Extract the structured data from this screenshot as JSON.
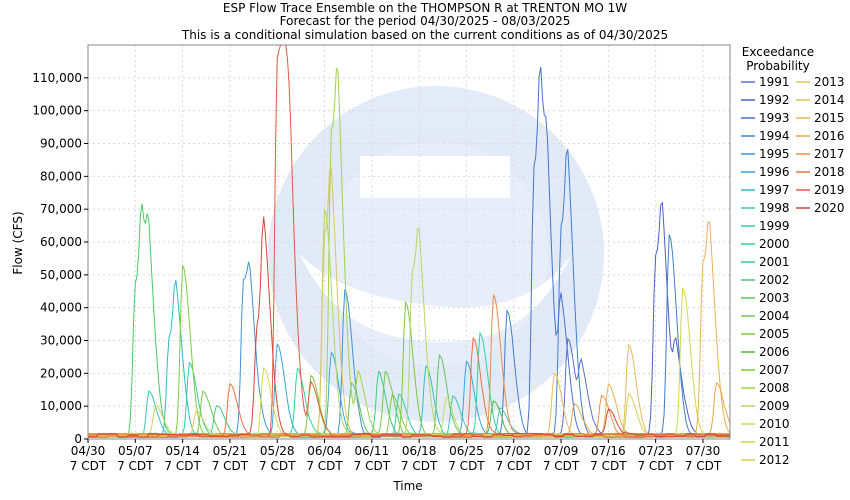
{
  "chart_data": {
    "type": "line",
    "title_lines": [
      "ESP Flow Trace Ensemble on the THOMPSON R at TRENTON MO 1W",
      "Forecast for the period 04/30/2025 - 08/03/2025",
      "This is a conditional simulation based on the current conditions as of 04/30/2025"
    ],
    "xlabel": "Time",
    "ylabel": "Flow (CFS)",
    "ylim": [
      0,
      120000
    ],
    "yticks": [
      0,
      10000,
      20000,
      30000,
      40000,
      50000,
      60000,
      70000,
      80000,
      90000,
      100000,
      110000
    ],
    "ytick_labels": [
      "0",
      "10,000",
      "20,000",
      "30,000",
      "40,000",
      "50,000",
      "60,000",
      "70,000",
      "80,000",
      "90,000",
      "100,000",
      "110,000"
    ],
    "xlim_days": [
      0,
      95
    ],
    "xticks": [
      {
        "day": 0,
        "date": "04/30",
        "tz": "7 CDT"
      },
      {
        "day": 7,
        "date": "05/07",
        "tz": "7 CDT"
      },
      {
        "day": 14,
        "date": "05/14",
        "tz": "7 CDT"
      },
      {
        "day": 21,
        "date": "05/21",
        "tz": "7 CDT"
      },
      {
        "day": 28,
        "date": "05/28",
        "tz": "7 CDT"
      },
      {
        "day": 35,
        "date": "06/04",
        "tz": "7 CDT"
      },
      {
        "day": 42,
        "date": "06/11",
        "tz": "7 CDT"
      },
      {
        "day": 49,
        "date": "06/18",
        "tz": "7 CDT"
      },
      {
        "day": 56,
        "date": "06/25",
        "tz": "7 CDT"
      },
      {
        "day": 63,
        "date": "07/02",
        "tz": "7 CDT"
      },
      {
        "day": 70,
        "date": "07/09",
        "tz": "7 CDT"
      },
      {
        "day": 77,
        "date": "07/16",
        "tz": "7 CDT"
      },
      {
        "day": 84,
        "date": "07/23",
        "tz": "7 CDT"
      },
      {
        "day": 91,
        "date": "07/30",
        "tz": "7 CDT"
      }
    ],
    "grid": true,
    "legend_title_lines": [
      "Exceedance",
      "Probability"
    ],
    "legend_position": "right",
    "series": [
      {
        "name": "1991",
        "color": "#5a6fd0",
        "peaks": [
          [
            71,
            30000
          ],
          [
            73,
            18000
          ]
        ]
      },
      {
        "name": "1992",
        "color": "#4a60c8",
        "peaks": [
          [
            84,
            55000
          ],
          [
            85,
            35000
          ],
          [
            87,
            22000
          ]
        ]
      },
      {
        "name": "1993",
        "color": "#4670d2",
        "peaks": [
          [
            66,
            81000
          ],
          [
            67,
            58000
          ],
          [
            68,
            36000
          ],
          [
            70,
            35000
          ]
        ]
      },
      {
        "name": "1994",
        "color": "#3f7fcf",
        "peaks": [
          [
            62,
            38000
          ],
          [
            70,
            63000
          ],
          [
            71,
            45000
          ],
          [
            86,
            61000
          ]
        ]
      },
      {
        "name": "1995",
        "color": "#3a95d8",
        "peaks": [
          [
            23,
            47000
          ],
          [
            24,
            20000
          ],
          [
            38,
            44000
          ]
        ]
      },
      {
        "name": "1996",
        "color": "#34a8d6",
        "peaks": [
          [
            28,
            28000
          ],
          [
            36,
            25000
          ],
          [
            56,
            22000
          ]
        ]
      },
      {
        "name": "1997",
        "color": "#2fbcc4",
        "peaks": [
          [
            12,
            30000
          ],
          [
            13,
            28000
          ],
          [
            50,
            21000
          ]
        ]
      },
      {
        "name": "1998",
        "color": "#3cc6b6",
        "peaks": [
          [
            9,
            14000
          ],
          [
            54,
            12000
          ],
          [
            61,
            8000
          ]
        ]
      },
      {
        "name": "1999",
        "color": "#2fcfb0",
        "peaks": [
          [
            15,
            22000
          ],
          [
            46,
            13000
          ]
        ]
      },
      {
        "name": "2000",
        "color": "#2dd39a",
        "peaks": [
          [
            31,
            20000
          ],
          [
            58,
            31000
          ]
        ]
      },
      {
        "name": "2001",
        "color": "#36cf80",
        "peaks": [
          [
            19,
            9000
          ],
          [
            43,
            19000
          ]
        ]
      },
      {
        "name": "2002",
        "color": "#4cc86a",
        "peaks": [
          [
            7,
            46000
          ],
          [
            8,
            40000
          ],
          [
            9,
            30000
          ]
        ]
      },
      {
        "name": "2003",
        "color": "#5fc65a",
        "peaks": [
          [
            39,
            16000
          ],
          [
            52,
            25000
          ]
        ]
      },
      {
        "name": "2004",
        "color": "#70c84c",
        "peaks": [
          [
            17,
            14000
          ],
          [
            44,
            20000
          ]
        ]
      },
      {
        "name": "2005",
        "color": "#7ecf3d",
        "peaks": [
          [
            14,
            52000
          ],
          [
            45,
            12000
          ]
        ]
      },
      {
        "name": "2006",
        "color": "#59b83a",
        "peaks": [
          [
            60,
            10000
          ]
        ]
      },
      {
        "name": "2007",
        "color": "#7cc832",
        "peaks": [
          [
            33,
            18000
          ],
          [
            47,
            40000
          ]
        ]
      },
      {
        "name": "2008",
        "color": "#a0d34a",
        "peaks": [
          [
            36,
            92000
          ],
          [
            37,
            50000
          ],
          [
            40,
            18000
          ]
        ]
      },
      {
        "name": "2009",
        "color": "#b3d860",
        "peaks": [
          [
            35,
            69000
          ],
          [
            48,
            50000
          ],
          [
            49,
            30000
          ]
        ]
      },
      {
        "name": "2010",
        "color": "#c6dc58",
        "peaks": [
          [
            10,
            9000
          ],
          [
            53,
            11000
          ]
        ]
      },
      {
        "name": "2011",
        "color": "#d4d64f",
        "peaks": [
          [
            26,
            20000
          ],
          [
            88,
            45000
          ]
        ]
      },
      {
        "name": "2012",
        "color": "#d8ce58",
        "peaks": [
          [
            16,
            8000
          ],
          [
            80,
            13000
          ]
        ]
      },
      {
        "name": "2013",
        "color": "#e0c45a",
        "peaks": [
          [
            35,
            60000
          ],
          [
            36,
            42000
          ]
        ]
      },
      {
        "name": "2014",
        "color": "#e6bd58",
        "peaks": [
          [
            69,
            19000
          ],
          [
            80,
            27000
          ]
        ]
      },
      {
        "name": "2015",
        "color": "#ebb24f",
        "peaks": [
          [
            77,
            16000
          ],
          [
            91,
            52000
          ],
          [
            92,
            30000
          ]
        ]
      },
      {
        "name": "2016",
        "color": "#eda64a",
        "peaks": [
          [
            72,
            10000
          ],
          [
            93,
            16000
          ]
        ]
      },
      {
        "name": "2017",
        "color": "#ec8b48",
        "peaks": [
          [
            60,
            43000
          ],
          [
            76,
            12000
          ]
        ]
      },
      {
        "name": "2018",
        "color": "#e77245",
        "peaks": [
          [
            21,
            16000
          ],
          [
            57,
            30000
          ]
        ]
      },
      {
        "name": "2019",
        "color": "#e25a40",
        "peaks": [
          [
            28,
            114000
          ],
          [
            29,
            65000
          ],
          [
            30,
            30000
          ],
          [
            33,
            15000
          ]
        ]
      },
      {
        "name": "2020",
        "color": "#d8443a",
        "peaks": [
          [
            25,
            32000
          ],
          [
            26,
            46000
          ],
          [
            77,
            8000
          ]
        ]
      }
    ]
  }
}
